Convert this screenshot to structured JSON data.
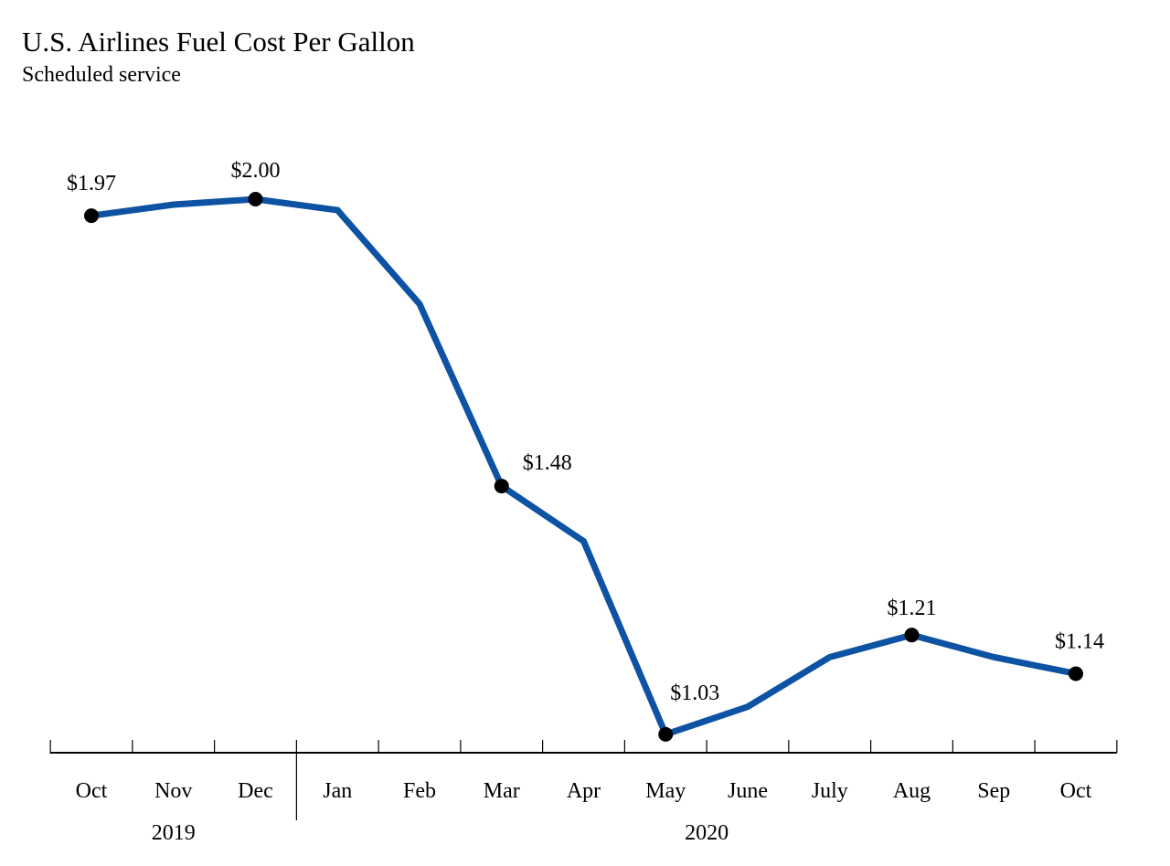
{
  "chart_data": {
    "type": "line",
    "title": "U.S. Airlines Fuel Cost Per Gallon",
    "subtitle": "Scheduled service",
    "categories": [
      "Oct",
      "Nov",
      "Dec",
      "Jan",
      "Feb",
      "Mar",
      "Apr",
      "May",
      "June",
      "July",
      "Aug",
      "Sep",
      "Oct"
    ],
    "year_groups": [
      {
        "label": "2019",
        "months": [
          "Oct",
          "Nov",
          "Dec"
        ]
      },
      {
        "label": "2020",
        "months": [
          "Jan",
          "Feb",
          "Mar",
          "Apr",
          "May",
          "June",
          "July",
          "Aug",
          "Sep",
          "Oct"
        ]
      }
    ],
    "values": [
      1.97,
      1.99,
      2.0,
      1.98,
      1.81,
      1.48,
      1.38,
      1.03,
      1.08,
      1.17,
      1.21,
      1.17,
      1.14
    ],
    "data_labels": [
      {
        "index": 0,
        "text": "$1.97"
      },
      {
        "index": 2,
        "text": "$2.00"
      },
      {
        "index": 5,
        "text": "$1.48"
      },
      {
        "index": 7,
        "text": "$1.03"
      },
      {
        "index": 10,
        "text": "$1.21"
      },
      {
        "index": 12,
        "text": "$1.14"
      }
    ],
    "xlabel": "",
    "ylabel": "",
    "ylim": [
      1.0,
      2.0
    ],
    "grid": false,
    "line_color": "#0d52a3",
    "marker_color": "#000000"
  }
}
